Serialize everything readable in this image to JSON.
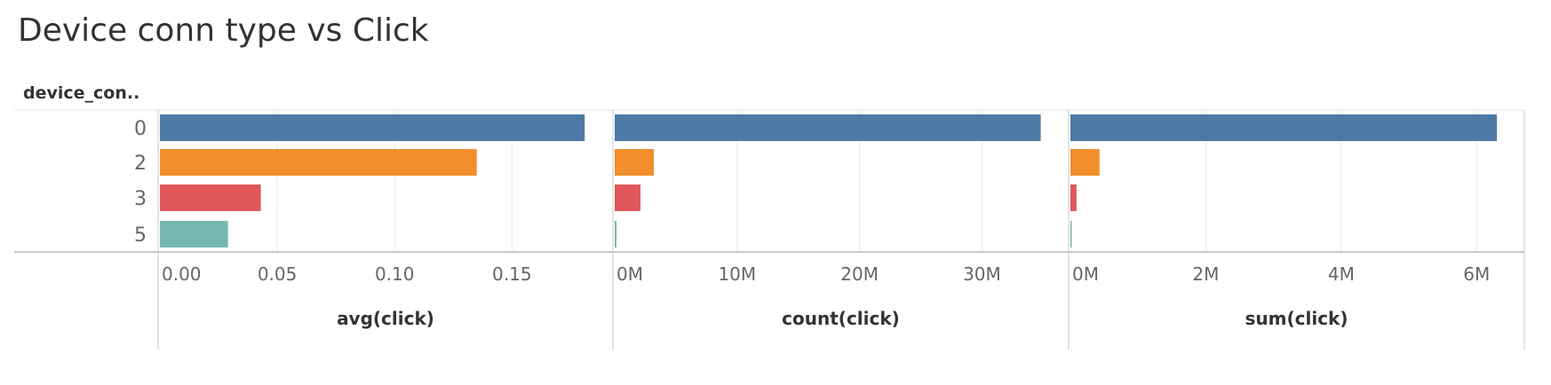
{
  "title": "Device conn type vs Click",
  "row_header": "device_con..",
  "colors": {
    "0": "#4e79a7",
    "2": "#f28e2b",
    "3": "#e15759",
    "5": "#76b7b2",
    "gridline": "#e6e6e6",
    "axis": "#c8c8c8",
    "tick_text": "#666666",
    "label_text": "#333333"
  },
  "chart_data": {
    "type": "bar",
    "orientation": "horizontal",
    "categories": [
      "0",
      "2",
      "3",
      "5"
    ],
    "panels": [
      {
        "measure": "avg(click)",
        "xlabel": "avg(click)",
        "values": [
          0.181,
          0.135,
          0.043,
          0.029
        ],
        "xlim": [
          0,
          0.19
        ],
        "ticks": [
          0,
          0.05,
          0.1,
          0.15
        ],
        "tick_labels": [
          "0.00",
          "0.05",
          "0.10",
          "0.15"
        ]
      },
      {
        "measure": "count(click)",
        "xlabel": "count(click)",
        "values": [
          34800000,
          3200000,
          2100000,
          150000
        ],
        "xlim": [
          0,
          36500000
        ],
        "ticks": [
          0,
          10000000,
          20000000,
          30000000
        ],
        "tick_labels": [
          "0M",
          "10M",
          "20M",
          "30M"
        ]
      },
      {
        "measure": "sum(click)",
        "xlabel": "sum(click)",
        "values": [
          6300000,
          430000,
          90000,
          4000
        ],
        "xlim": [
          0,
          6600000
        ],
        "ticks": [
          0,
          2000000,
          4000000,
          6000000
        ],
        "tick_labels": [
          "0M",
          "2M",
          "4M",
          "6M"
        ]
      }
    ],
    "grid": true,
    "legend": "none"
  }
}
